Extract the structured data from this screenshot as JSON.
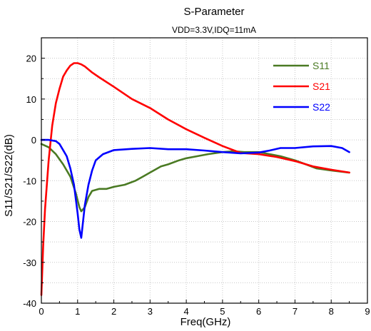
{
  "chart_data": {
    "type": "line",
    "title": "S-Parameter",
    "subtitle": "VDD=3.3V,IDQ=11mA",
    "xlabel": "Freq(GHz)",
    "ylabel": "S11/S21/S22(dB)",
    "xlim": [
      0,
      9
    ],
    "ylim": [
      -40,
      25
    ],
    "xticks": [
      "0",
      "1",
      "2",
      "3",
      "4",
      "5",
      "6",
      "7",
      "8",
      "9"
    ],
    "yticks": [
      "-40",
      "-30",
      "-20",
      "-10",
      "0",
      "10",
      "20"
    ],
    "grid": true,
    "legend_position": "top-right",
    "series": [
      {
        "name": "S11",
        "color": "#4a7a23",
        "x": [
          0.0,
          0.2,
          0.4,
          0.6,
          0.8,
          0.95,
          1.05,
          1.1,
          1.2,
          1.3,
          1.4,
          1.6,
          1.8,
          2.0,
          2.3,
          2.6,
          2.8,
          3.0,
          3.3,
          3.5,
          3.8,
          4.0,
          4.3,
          4.6,
          5.0,
          5.3,
          5.6,
          6.0,
          6.3,
          6.6,
          7.0,
          7.3,
          7.6,
          8.0,
          8.5
        ],
        "y": [
          -1,
          -1.8,
          -3.5,
          -6,
          -9,
          -13,
          -16.5,
          -17.5,
          -16.5,
          -14,
          -12.5,
          -12,
          -12,
          -11.5,
          -11,
          -10,
          -9,
          -8,
          -6.5,
          -6,
          -5,
          -4.5,
          -4,
          -3.5,
          -3,
          -2.8,
          -3,
          -3,
          -3.5,
          -4,
          -5,
          -6,
          -7,
          -7.5,
          -8
        ]
      },
      {
        "name": "S21",
        "color": "#ff0000",
        "x": [
          0.0,
          0.05,
          0.1,
          0.2,
          0.3,
          0.4,
          0.5,
          0.6,
          0.7,
          0.8,
          0.9,
          1.0,
          1.1,
          1.2,
          1.4,
          1.6,
          2.0,
          2.5,
          3.0,
          3.5,
          4.0,
          4.5,
          5.0,
          5.5,
          6.0,
          6.5,
          7.0,
          7.5,
          8.0,
          8.5
        ],
        "y": [
          -38,
          -26,
          -17,
          -5,
          3.5,
          9,
          12.5,
          15.5,
          17,
          18.2,
          18.8,
          18.8,
          18.5,
          18,
          16.5,
          15.3,
          13,
          10,
          7.8,
          5,
          2.6,
          0.5,
          -1.5,
          -3.2,
          -3.5,
          -4.2,
          -5.2,
          -6.5,
          -7.3,
          -8
        ]
      },
      {
        "name": "S22",
        "color": "#0000ff",
        "x": [
          0.0,
          0.2,
          0.4,
          0.5,
          0.6,
          0.7,
          0.8,
          0.9,
          1.0,
          1.05,
          1.1,
          1.15,
          1.2,
          1.3,
          1.4,
          1.5,
          1.7,
          2.0,
          2.5,
          3.0,
          3.5,
          4.0,
          4.5,
          5.0,
          5.5,
          6.0,
          6.3,
          6.6,
          7.0,
          7.5,
          8.0,
          8.3,
          8.5
        ],
        "y": [
          0,
          0,
          -0.3,
          -1,
          -2.5,
          -4,
          -7,
          -11,
          -18,
          -22,
          -24,
          -20,
          -16,
          -11,
          -7.5,
          -5,
          -3.5,
          -2.5,
          -2.2,
          -2,
          -2.3,
          -2.3,
          -2.6,
          -3,
          -3.3,
          -3.1,
          -2.6,
          -2,
          -2,
          -1.6,
          -1.5,
          -2,
          -3
        ]
      }
    ]
  }
}
